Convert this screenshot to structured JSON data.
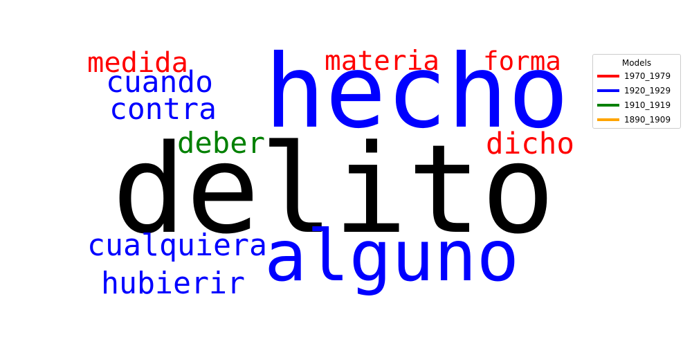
{
  "chart_data": {
    "type": "wordcloud",
    "words": [
      {
        "text": "delito",
        "weight": 100,
        "series": "black"
      },
      {
        "text": "hecho",
        "weight": 64,
        "series": "1920_1929"
      },
      {
        "text": "alguno",
        "weight": 48,
        "series": "1920_1929"
      },
      {
        "text": "cuando",
        "weight": 20,
        "series": "1920_1929"
      },
      {
        "text": "contra",
        "weight": 20,
        "series": "1920_1929"
      },
      {
        "text": "cualquiera",
        "weight": 20,
        "series": "1920_1929"
      },
      {
        "text": "hubierir",
        "weight": 20,
        "series": "1920_1929"
      },
      {
        "text": "deber",
        "weight": 20,
        "series": "1910_1919"
      },
      {
        "text": "medida",
        "weight": 19,
        "series": "1970_1979"
      },
      {
        "text": "materia",
        "weight": 19,
        "series": "1970_1979"
      },
      {
        "text": "forma",
        "weight": 19,
        "series": "1970_1979"
      },
      {
        "text": "dicho",
        "weight": 19,
        "series": "1970_1979"
      }
    ],
    "legend": {
      "title": "Models",
      "placement": "top-right",
      "items": [
        {
          "label": "1970_1979",
          "color": "#ff0000"
        },
        {
          "label": "1920_1929",
          "color": "#0000ff"
        },
        {
          "label": "1910_1919",
          "color": "#008000"
        },
        {
          "label": "1890_1909",
          "color": "#ffa500"
        }
      ]
    },
    "colors": {
      "black": "#000000",
      "1970_1979": "#ff0000",
      "1920_1929": "#0000ff",
      "1910_1919": "#008000",
      "1890_1909": "#ffa500"
    }
  }
}
